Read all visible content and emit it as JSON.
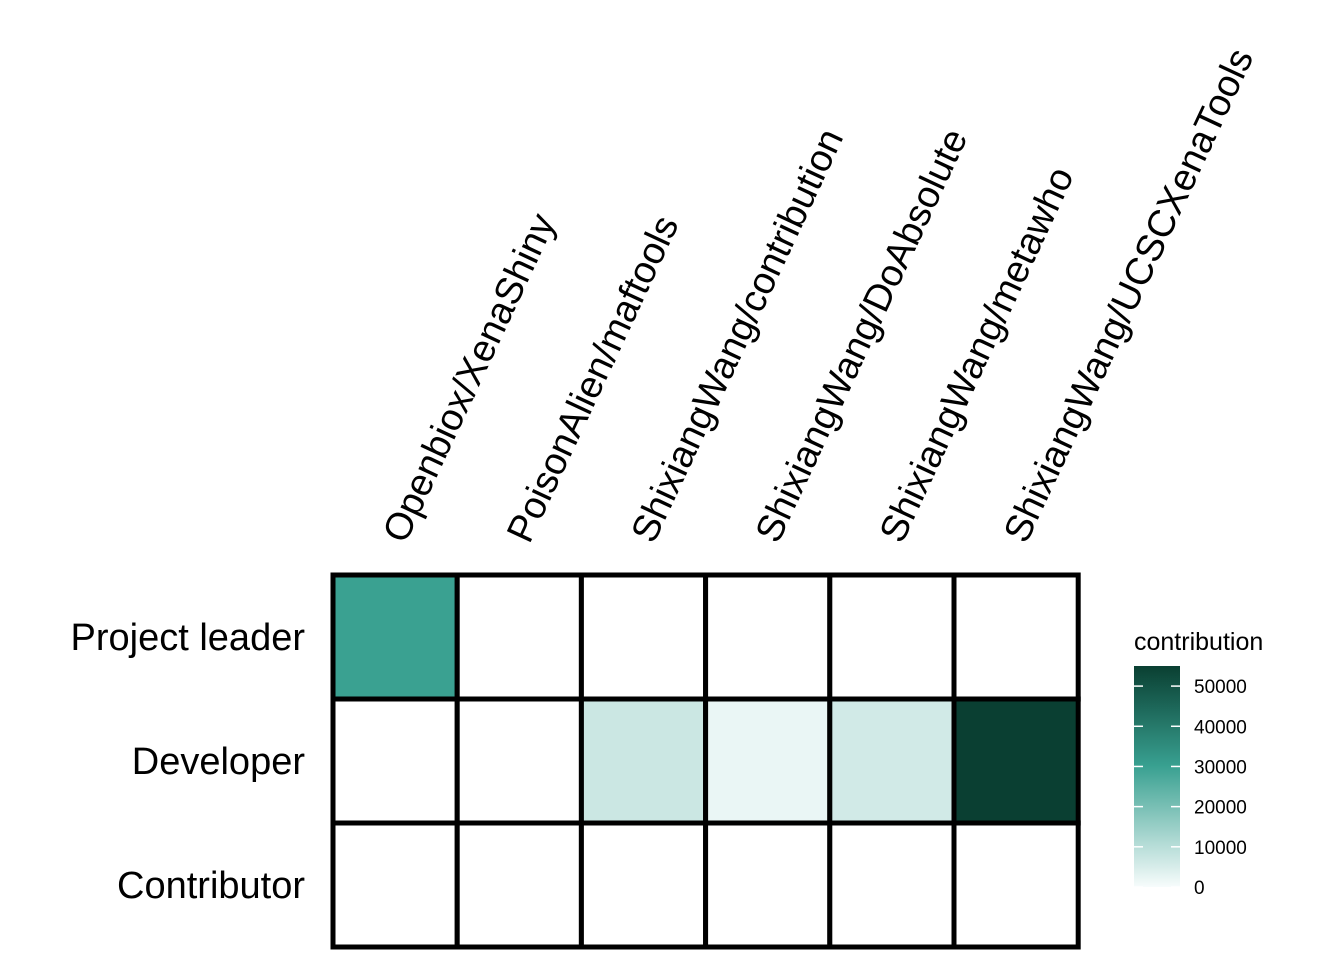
{
  "chart_data": {
    "type": "heatmap",
    "x_categories": [
      "Openbiox/XenaShiny",
      "PoisonAlien/maftools",
      "ShixiangWang/contribution",
      "ShixiangWang/DoAbsolute",
      "ShixiangWang/metawho",
      "ShixiangWang/UCSCXenaTools"
    ],
    "y_categories": [
      "Project leader",
      "Developer",
      "Contributor"
    ],
    "values": [
      [
        30000,
        0,
        0,
        0,
        0,
        0
      ],
      [
        0,
        0,
        7000,
        2000,
        6000,
        55000
      ],
      [
        0,
        0,
        0,
        0,
        0,
        0
      ]
    ],
    "legend": {
      "title": "contribution",
      "ticks": [
        0,
        10000,
        20000,
        30000,
        40000,
        50000
      ],
      "tick_labels": [
        "0",
        "10000",
        "20000",
        "30000",
        "40000",
        "50000"
      ],
      "range": [
        0,
        55000
      ],
      "placement": "right"
    },
    "colors": {
      "low": "#f7fcfc",
      "mid": "#38a090",
      "high": "#0a3f32",
      "border": "#000000"
    }
  }
}
